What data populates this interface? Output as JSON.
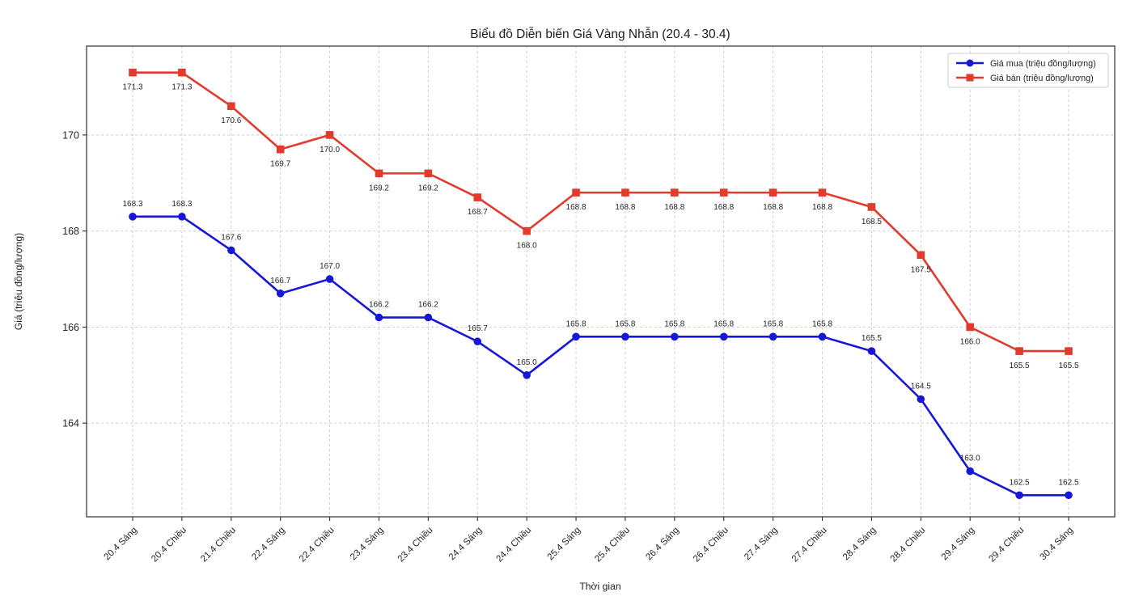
{
  "chart_data": {
    "type": "line",
    "title": "Biểu đồ Diễn biến Giá Vàng Nhẫn (20.4 - 30.4)",
    "xlabel": "Thời gian",
    "ylabel": "Giá (triệu đồng/lượng)",
    "categories": [
      "20.4 Sáng",
      "20.4 Chiều",
      "21.4 Chiều",
      "22.4 Sáng",
      "22.4 Chiều",
      "23.4 Sáng",
      "23.4 Chiều",
      "24.4 Sáng",
      "24.4 Chiều",
      "25.4 Sáng",
      "25.4 Chiều",
      "26.4 Sáng",
      "26.4 Chiều",
      "27.4 Sáng",
      "27.4 Chiều",
      "28.4 Sáng",
      "28.4 Chiều",
      "29.4 Sáng",
      "29.4 Chiều",
      "30.4 Sáng"
    ],
    "series": [
      {
        "name": "Giá mua (triệu đồng/lượng)",
        "color": "#1717d6",
        "marker": "circle",
        "label_position": "above",
        "values": [
          168.3,
          168.3,
          167.6,
          166.7,
          167.0,
          166.2,
          166.2,
          165.7,
          165.0,
          165.8,
          165.8,
          165.8,
          165.8,
          165.8,
          165.8,
          165.5,
          164.5,
          163.0,
          162.5,
          162.5
        ]
      },
      {
        "name": "Giá bán (triệu đồng/lượng)",
        "color": "#e23a2c",
        "marker": "square",
        "label_position": "below",
        "values": [
          171.3,
          171.3,
          170.6,
          169.7,
          170.0,
          169.2,
          169.2,
          168.7,
          168.0,
          168.8,
          168.8,
          168.8,
          168.8,
          168.8,
          168.8,
          168.5,
          167.5,
          166.0,
          165.5,
          165.5
        ]
      }
    ],
    "yticks": [
      164,
      166,
      168,
      170
    ],
    "ylim": [
      162.05,
      171.85
    ],
    "grid": true,
    "grid_style": "dashed",
    "legend_position": "top-right",
    "colors": {
      "grid": "#c9c9c9",
      "spine": "#2d2d2d",
      "legend_border": "#cccccc",
      "background": "#ffffff",
      "text": "#262626"
    }
  }
}
